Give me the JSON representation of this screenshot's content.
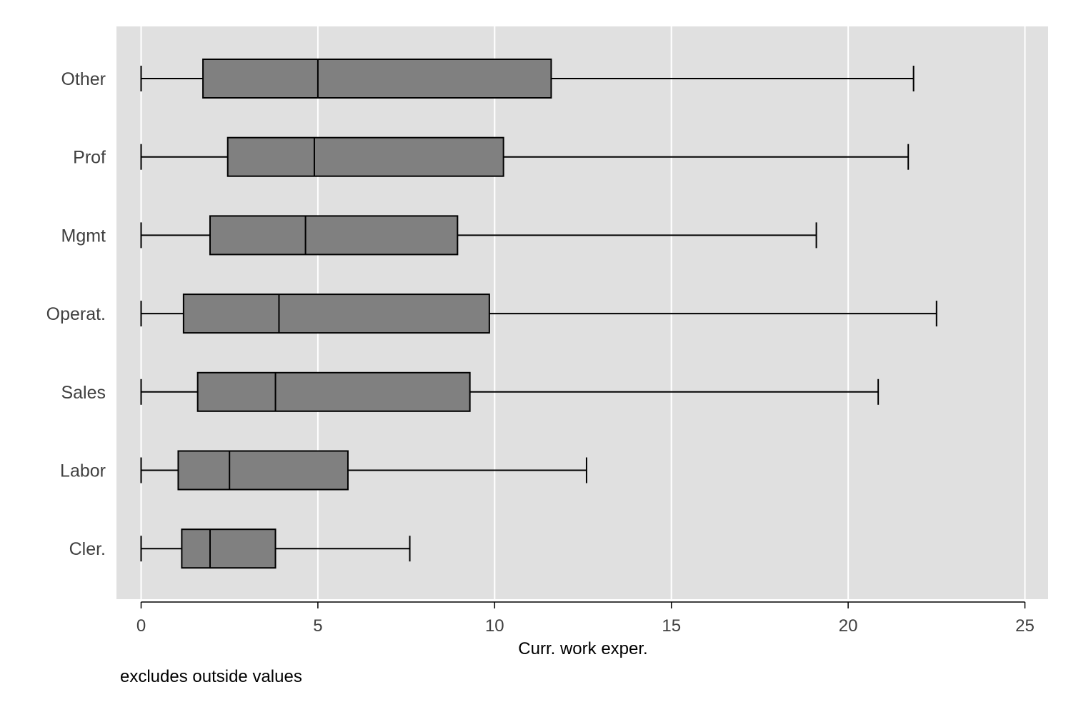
{
  "chart_data": {
    "type": "boxplot",
    "orientation": "horizontal",
    "xlabel": "Curr. work exper.",
    "note": "excludes outside values",
    "xlim": [
      0,
      25
    ],
    "xticks": [
      0,
      5,
      10,
      15,
      20,
      25
    ],
    "grid": true,
    "background_color": "#e0e0e0",
    "box_color": "#808080",
    "line_color": "#000000",
    "gridline_color": "#ffffff",
    "categories": [
      "Other",
      "Prof",
      "Mgmt",
      "Operat.",
      "Sales",
      "Labor",
      "Cler."
    ],
    "boxes": [
      {
        "category": "Other",
        "whisker_low": 0,
        "q1": 1.75,
        "median": 5.0,
        "q3": 11.6,
        "whisker_high": 21.85
      },
      {
        "category": "Prof",
        "whisker_low": 0,
        "q1": 2.45,
        "median": 4.9,
        "q3": 10.25,
        "whisker_high": 21.7
      },
      {
        "category": "Mgmt",
        "whisker_low": 0,
        "q1": 1.95,
        "median": 4.65,
        "q3": 8.95,
        "whisker_high": 19.1
      },
      {
        "category": "Operat.",
        "whisker_low": 0,
        "q1": 1.2,
        "median": 3.9,
        "q3": 9.85,
        "whisker_high": 22.5
      },
      {
        "category": "Sales",
        "whisker_low": 0,
        "q1": 1.6,
        "median": 3.8,
        "q3": 9.3,
        "whisker_high": 20.85
      },
      {
        "category": "Labor",
        "whisker_low": 0,
        "q1": 1.05,
        "median": 2.5,
        "q3": 5.85,
        "whisker_high": 12.6
      },
      {
        "category": "Cler.",
        "whisker_low": 0,
        "q1": 1.15,
        "median": 1.95,
        "q3": 3.8,
        "whisker_high": 7.6
      }
    ]
  }
}
